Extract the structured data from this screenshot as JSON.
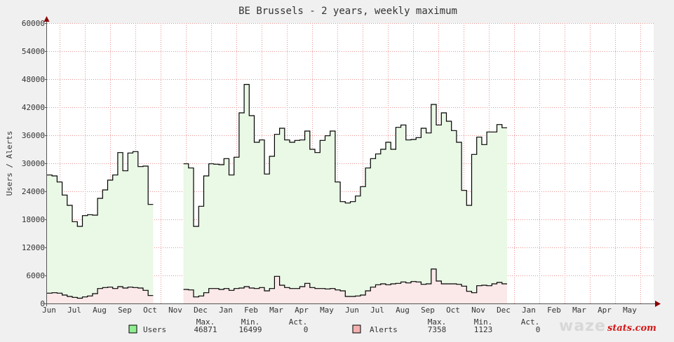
{
  "chart_data": {
    "type": "area",
    "title": "BE Brussels - 2 years, weekly maximum",
    "ylabel": "Users / Alerts",
    "ylim": [
      0,
      60000
    ],
    "yticks": [
      0,
      6000,
      12000,
      18000,
      24000,
      30000,
      36000,
      42000,
      48000,
      54000,
      60000
    ],
    "yticklabels": [
      "0",
      "6000",
      "12000",
      "18000",
      "24000",
      "30000",
      "36000",
      "42000",
      "48000",
      "54000",
      "60000"
    ],
    "months": [
      "Jun",
      "Jul",
      "Aug",
      "Sep",
      "Oct",
      "Nov",
      "Dec",
      "Jan",
      "Feb",
      "Mar",
      "Apr",
      "May",
      "Jun",
      "Jul",
      "Aug",
      "Sep",
      "Oct",
      "Nov",
      "Dec",
      "Jan",
      "Feb",
      "Mar",
      "Apr",
      "May"
    ],
    "grid": true,
    "colors": {
      "users_fill": "#eaf8e6",
      "users_line": "#000000",
      "alerts_fill": "#fbe8e8",
      "alerts_line": "#000000",
      "users_swatch": "#90ee90",
      "alerts_swatch": "#f4b0b0",
      "grid": "#e89090",
      "axis_arrow": "#8b0000"
    },
    "series": [
      {
        "name": "Users",
        "values": [
          27500,
          27300,
          26000,
          23200,
          21000,
          17500,
          16500,
          18800,
          19000,
          18900,
          22500,
          24300,
          26400,
          27500,
          32300,
          28400,
          32200,
          32500,
          29300,
          29400,
          21200,
          null,
          null,
          null,
          null,
          null,
          null,
          29900,
          29000,
          16500,
          20800,
          27300,
          29900,
          29800,
          29700,
          31000,
          27500,
          31300,
          40800,
          46870,
          40200,
          34500,
          35000,
          27700,
          31500,
          36200,
          37500,
          35000,
          34500,
          34900,
          35000,
          36900,
          33000,
          32300,
          34900,
          35900,
          36900,
          26000,
          21800,
          21500,
          21800,
          23000,
          25000,
          29000,
          31000,
          32000,
          33000,
          34500,
          33000,
          37700,
          38200,
          35000,
          35100,
          35500,
          37500,
          36500,
          42600,
          38200,
          40800,
          39000,
          37000,
          34500,
          24200,
          21000,
          31900,
          35600,
          34000,
          36700,
          36700,
          38300,
          37600
        ],
        "max": "46871",
        "min": "16499",
        "act": "0"
      },
      {
        "name": "Alerts",
        "values": [
          2200,
          2300,
          2200,
          1800,
          1500,
          1300,
          1120,
          1400,
          1600,
          2100,
          3200,
          3400,
          3500,
          3200,
          3600,
          3300,
          3500,
          3400,
          3300,
          2800,
          1700,
          null,
          null,
          null,
          null,
          null,
          null,
          3000,
          2900,
          1400,
          1600,
          2300,
          3200,
          3200,
          3000,
          3200,
          2800,
          3200,
          3300,
          3600,
          3300,
          3200,
          3400,
          2700,
          3200,
          5800,
          3900,
          3400,
          3200,
          3200,
          3600,
          4300,
          3400,
          3200,
          3200,
          3100,
          3200,
          2900,
          2700,
          1500,
          1500,
          1600,
          1800,
          2700,
          3500,
          4000,
          4200,
          4000,
          4200,
          4300,
          4600,
          4400,
          4700,
          4600,
          4100,
          4200,
          7358,
          4800,
          4200,
          4200,
          4200,
          4100,
          3700,
          2600,
          2300,
          3800,
          3900,
          3800,
          4200,
          4500,
          4200
        ],
        "max": "7358",
        "min": "1123",
        "act": "0"
      }
    ]
  },
  "legend": {
    "headers": {
      "max": "Max.",
      "min": "Min.",
      "act": "Act."
    }
  },
  "logo": {
    "main": "waze",
    "sub": "stats.com"
  }
}
